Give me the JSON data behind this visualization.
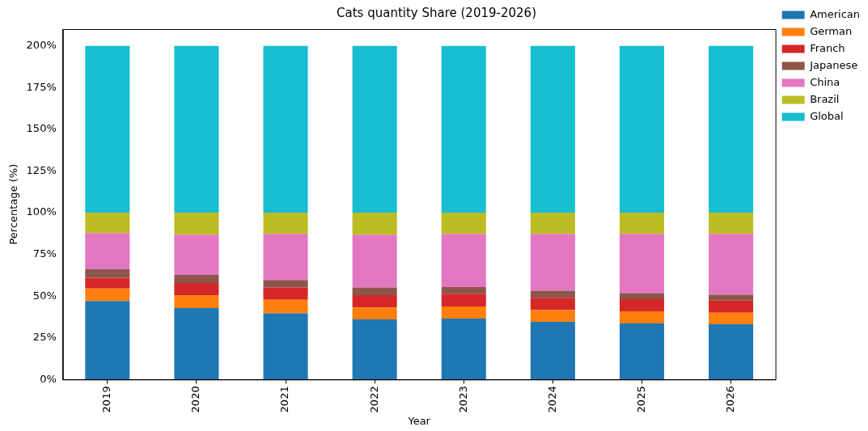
{
  "chart_data": {
    "type": "bar",
    "title": "Cats quantity Share (2019-2026)",
    "xlabel": "Year",
    "ylabel": "Percentage (%)",
    "stacked": true,
    "legend": "right",
    "grid": false,
    "categories": [
      "2019",
      "2020",
      "2021",
      "2022",
      "2023",
      "2024",
      "2025",
      "2026"
    ],
    "ylim": [
      0,
      210
    ],
    "yticks": [
      {
        "value": 0,
        "label": "0%"
      },
      {
        "value": 25,
        "label": "25%"
      },
      {
        "value": 50,
        "label": "50%"
      },
      {
        "value": 75,
        "label": "75%"
      },
      {
        "value": 100,
        "label": "100%"
      },
      {
        "value": 125,
        "label": "125%"
      },
      {
        "value": 150,
        "label": "150%"
      },
      {
        "value": 175,
        "label": "175%"
      },
      {
        "value": 200,
        "label": "200%"
      }
    ],
    "series": [
      {
        "name": "American",
        "color": "#1f77b4",
        "values": [
          47.1,
          42.8,
          39.6,
          36.0,
          36.5,
          34.6,
          33.6,
          33.1
        ]
      },
      {
        "name": "German",
        "color": "#ff7f0e",
        "values": [
          7.4,
          7.7,
          8.2,
          7.2,
          7.3,
          7.1,
          7.3,
          6.9
        ]
      },
      {
        "name": "Franch",
        "color": "#d62728",
        "values": [
          6.5,
          7.3,
          7.3,
          7.3,
          7.6,
          7.3,
          7.2,
          7.3
        ]
      },
      {
        "name": "Japanese",
        "color": "#8c564b",
        "values": [
          5.1,
          4.9,
          4.5,
          4.6,
          4.0,
          4.2,
          3.7,
          3.5
        ]
      },
      {
        "name": "China",
        "color": "#e377c2",
        "values": [
          21.6,
          24.1,
          27.7,
          31.7,
          31.9,
          34.1,
          35.5,
          36.5
        ]
      },
      {
        "name": "Brazil",
        "color": "#bcbd22",
        "values": [
          12.3,
          13.2,
          12.7,
          13.2,
          12.7,
          12.7,
          12.7,
          12.7
        ]
      },
      {
        "name": "Global",
        "color": "#17becf",
        "values": [
          100,
          100,
          100,
          100,
          100,
          100,
          100,
          100
        ]
      }
    ]
  }
}
